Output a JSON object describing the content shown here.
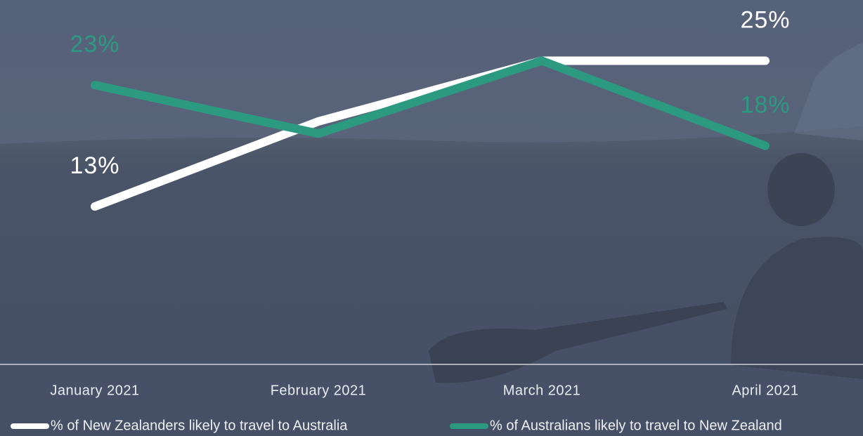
{
  "chart_data": {
    "type": "line",
    "categories": [
      "January 2021",
      "February 2021",
      "March 2021",
      "April 2021"
    ],
    "series": [
      {
        "name": "% of New Zealanders likely to travel to Australia",
        "color": "#ffffff",
        "values": [
          13,
          20,
          25,
          25
        ],
        "value_labels": [
          "13%",
          null,
          null,
          "25%"
        ]
      },
      {
        "name": "% of Australians likely to travel to New Zealand",
        "color": "#2b9a80",
        "values": [
          23,
          19,
          25,
          18
        ],
        "value_labels": [
          "23%",
          null,
          null,
          "18%"
        ]
      }
    ],
    "ylim": [
      0,
      30
    ],
    "grid": false
  }
}
